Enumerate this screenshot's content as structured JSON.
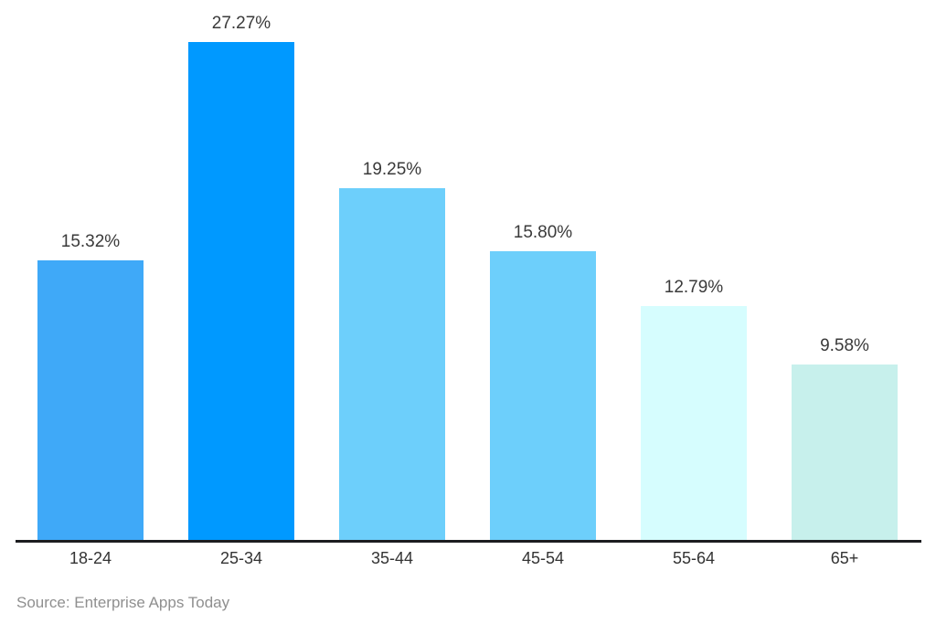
{
  "chart_data": {
    "type": "bar",
    "categories": [
      "18-24",
      "25-34",
      "35-44",
      "45-54",
      "55-64",
      "65+"
    ],
    "values": [
      15.32,
      27.27,
      19.25,
      15.8,
      12.79,
      9.58
    ],
    "value_labels": [
      "15.32%",
      "27.27%",
      "19.25%",
      "15.80%",
      "12.79%",
      "9.58%"
    ],
    "bar_colors": [
      "#3fa9f8",
      "#0099ff",
      "#6dcffb",
      "#6dcffb",
      "#d6fdfe",
      "#c7f0ec"
    ],
    "title": "",
    "xlabel": "",
    "ylabel": "",
    "ylim": [
      0,
      29
    ],
    "grid": false,
    "legend": null,
    "data_labels_shown": true
  },
  "footer": {
    "source_label": "Source: Enterprise Apps Today"
  },
  "colors": {
    "background": "#ffffff",
    "axis_line": "#1c1d20",
    "value_label_text": "#3a3a3a",
    "x_label_text": "#333333",
    "source_text": "#8f8f8f"
  }
}
